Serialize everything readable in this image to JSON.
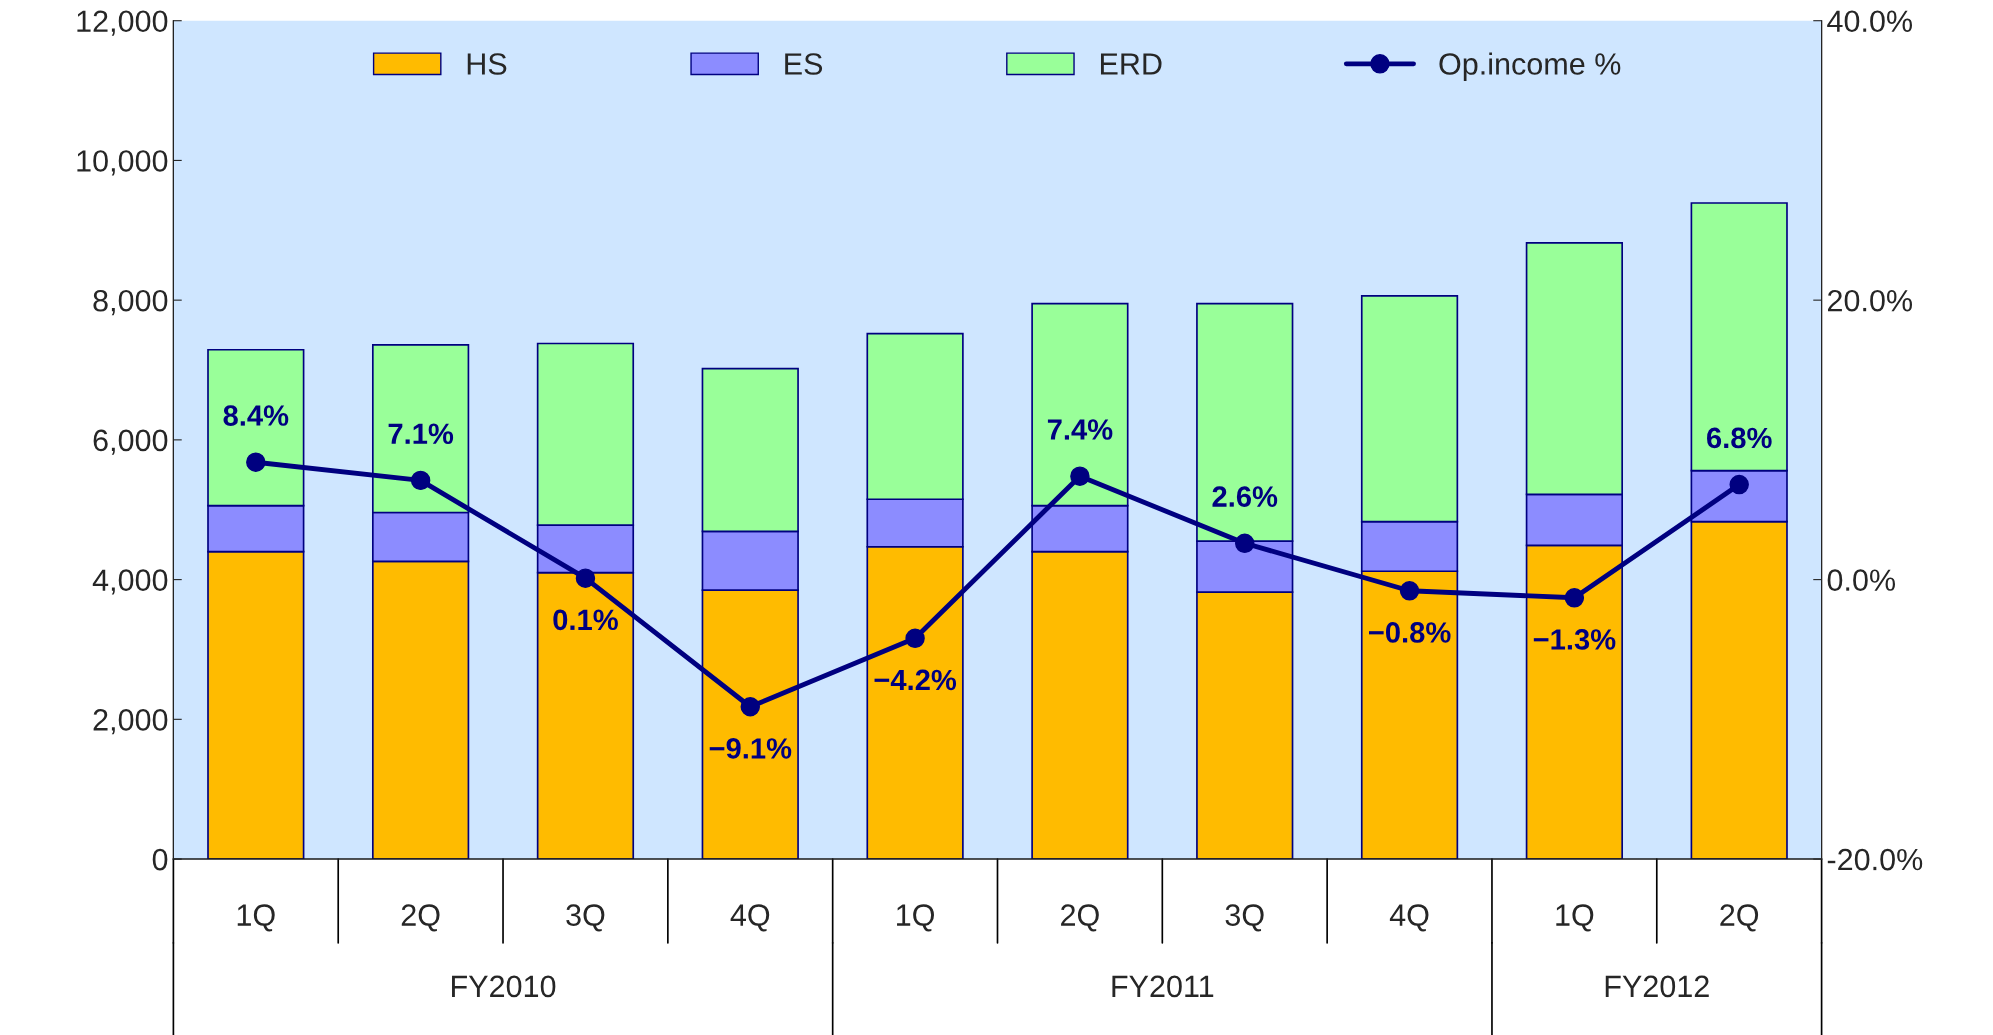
{
  "chart_data": {
    "type": "bar",
    "stacked": true,
    "categories": [
      "1Q",
      "2Q",
      "3Q",
      "4Q",
      "1Q",
      "2Q",
      "3Q",
      "4Q",
      "1Q",
      "2Q"
    ],
    "series": [
      {
        "name": "HS",
        "color": "#ffbb00",
        "values": [
          4400,
          4260,
          4100,
          3850,
          4470,
          4400,
          3820,
          4120,
          4490,
          4830
        ]
      },
      {
        "name": "ES",
        "color": "#8c8cff",
        "values": [
          660,
          700,
          680,
          840,
          680,
          660,
          730,
          710,
          730,
          730
        ]
      },
      {
        "name": "ERD",
        "color": "#99ff99",
        "values": [
          2230,
          2400,
          2600,
          2330,
          2370,
          2890,
          3400,
          3230,
          3600,
          3830
        ]
      },
      {
        "name": "Op.income %",
        "type": "line",
        "axis": "y2",
        "color": "#000080",
        "marker": "circle",
        "values": [
          8.4,
          7.1,
          0.1,
          -9.1,
          -4.2,
          7.4,
          2.6,
          -0.8,
          -1.3,
          6.8
        ],
        "value_labels": [
          "8.4%",
          "7.1%",
          "0.1%",
          "−9.1%",
          "−4.2%",
          "7.4%",
          "2.6%",
          "−0.8%",
          "−1.3%",
          "6.8%"
        ]
      }
    ],
    "ylim": [
      0,
      12000
    ],
    "yticks": [
      {
        "value": 0,
        "label": "0"
      },
      {
        "value": 2000,
        "label": "2,000"
      },
      {
        "value": 4000,
        "label": "4,000"
      },
      {
        "value": 6000,
        "label": "6,000"
      },
      {
        "value": 8000,
        "label": "8,000"
      },
      {
        "value": 10000,
        "label": "10,000"
      },
      {
        "value": 12000,
        "label": "12,000"
      }
    ],
    "y2lim": [
      -20,
      40
    ],
    "y2ticks": [
      {
        "value": -20,
        "label": "-20.0%"
      },
      {
        "value": 0,
        "label": "0.0%"
      },
      {
        "value": 20,
        "label": "20.0%"
      },
      {
        "value": 40,
        "label": "40.0%"
      }
    ],
    "annotations": [
      "FY2010",
      "FY2011",
      "FY2012"
    ],
    "legend": "top",
    "grid": false
  }
}
